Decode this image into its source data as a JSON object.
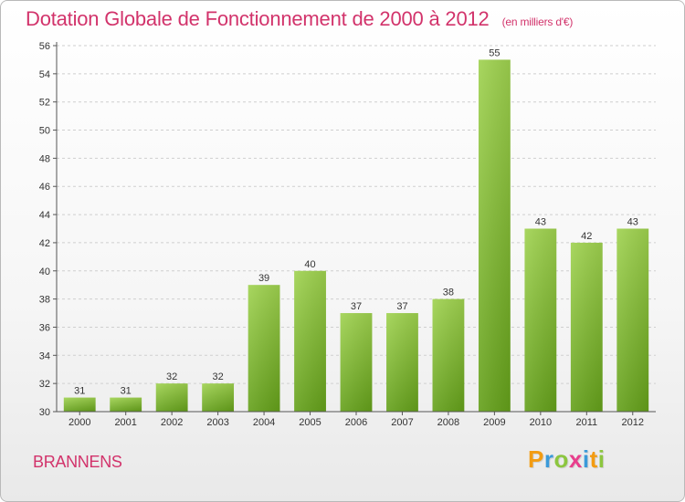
{
  "header": {
    "title": "Dotation Globale de Fonctionnement de 2000 à 2012",
    "subtitle": "(en milliers d'€)"
  },
  "footer": {
    "commune": "BRANNENS",
    "logo": [
      "P",
      "r",
      "o",
      "x",
      "i",
      "t",
      "i"
    ],
    "logo_colors": [
      "#f39c12",
      "#3b9ad9",
      "#8cc63f",
      "#e83e8c",
      "#3b9ad9",
      "#f39c12",
      "#8cc63f"
    ]
  },
  "chart_data": {
    "type": "bar",
    "categories": [
      "2000",
      "2001",
      "2002",
      "2003",
      "2004",
      "2005",
      "2006",
      "2007",
      "2008",
      "2009",
      "2010",
      "2011",
      "2012"
    ],
    "values": [
      31,
      31,
      32,
      32,
      39,
      40,
      37,
      37,
      38,
      55,
      43,
      42,
      43
    ],
    "ylim": [
      30,
      56
    ],
    "yticks": [
      30,
      32,
      34,
      36,
      38,
      40,
      42,
      44,
      46,
      48,
      50,
      52,
      54,
      56
    ],
    "grid": true,
    "bar_color": "#8cc63f",
    "bar_color_dark": "#6aa01e"
  }
}
